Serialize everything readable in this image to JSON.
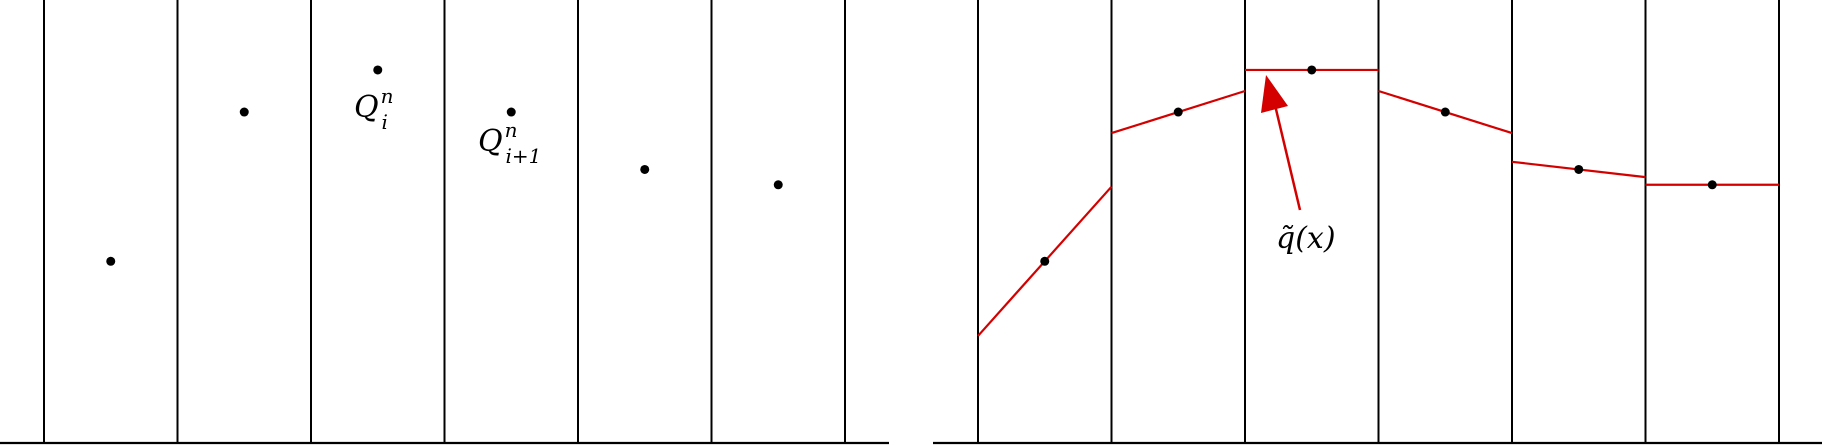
{
  "left_panel": {
    "points": [
      {
        "cell": 1,
        "value": 0.48
      },
      {
        "cell": 2,
        "value": 0.87
      },
      {
        "cell": 3,
        "value": 0.98
      },
      {
        "cell": 4,
        "value": 0.87
      },
      {
        "cell": 5,
        "value": 0.72
      },
      {
        "cell": 6,
        "value": 0.68
      }
    ],
    "labels": {
      "qi": {
        "base": "Q",
        "sup": "n",
        "sub": "i"
      },
      "qi1": {
        "base": "Q",
        "sup": "n",
        "sub": "i+1"
      }
    }
  },
  "right_panel": {
    "points": [
      {
        "cell": 1,
        "value": 0.48
      },
      {
        "cell": 2,
        "value": 0.87
      },
      {
        "cell": 3,
        "value": 0.98
      },
      {
        "cell": 4,
        "value": 0.87
      },
      {
        "cell": 5,
        "value": 0.72
      },
      {
        "cell": 6,
        "value": 0.68
      }
    ],
    "reconstruction_color": "#d40000",
    "label": {
      "text": "q̃(x)"
    }
  },
  "colors": {
    "axis": "#000000",
    "point": "#000000",
    "arrow": "#d40000"
  }
}
